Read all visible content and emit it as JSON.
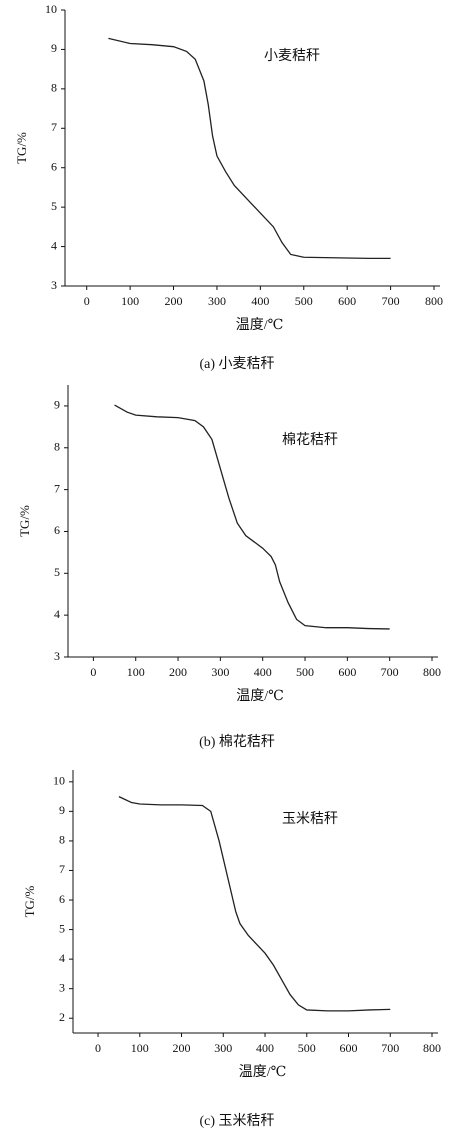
{
  "chart_data": [
    {
      "type": "line",
      "caption": "(a) 小麦秸秆",
      "annotation": "小麦秸秆",
      "xlabel": "温度/℃",
      "ylabel": "TG/%",
      "color": "#222222",
      "x": [
        50,
        100,
        150,
        200,
        230,
        250,
        270,
        280,
        290,
        300,
        320,
        340,
        370,
        400,
        430,
        450,
        470,
        500,
        550,
        600,
        650,
        700
      ],
      "values": [
        9.28,
        9.15,
        9.12,
        9.07,
        8.95,
        8.75,
        8.2,
        7.6,
        6.8,
        6.3,
        5.9,
        5.55,
        5.2,
        4.85,
        4.5,
        4.1,
        3.8,
        3.73,
        3.72,
        3.71,
        3.7,
        3.7
      ],
      "xlim": [
        -50,
        800
      ],
      "ylim": [
        3,
        10
      ],
      "xticks": [
        0,
        100,
        200,
        300,
        400,
        500,
        600,
        700,
        800
      ],
      "yticks": [
        3,
        4,
        5,
        6,
        7,
        8,
        9,
        10
      ]
    },
    {
      "type": "line",
      "caption": "(b) 棉花秸秆",
      "annotation": "棉花秸秆",
      "xlabel": "温度/℃",
      "ylabel": "TG/%",
      "color": "#222222",
      "x": [
        50,
        80,
        100,
        150,
        200,
        240,
        260,
        280,
        300,
        320,
        340,
        360,
        380,
        400,
        420,
        430,
        440,
        460,
        480,
        500,
        550,
        600,
        650,
        700
      ],
      "values": [
        9.02,
        8.85,
        8.78,
        8.74,
        8.72,
        8.65,
        8.5,
        8.2,
        7.5,
        6.8,
        6.2,
        5.9,
        5.75,
        5.6,
        5.4,
        5.2,
        4.8,
        4.3,
        3.9,
        3.75,
        3.7,
        3.7,
        3.68,
        3.67
      ],
      "xlim": [
        -60,
        800
      ],
      "ylim": [
        3,
        9.5
      ],
      "xticks": [
        0,
        100,
        200,
        300,
        400,
        500,
        600,
        700,
        800
      ],
      "yticks": [
        3,
        4,
        5,
        6,
        7,
        8,
        9
      ]
    },
    {
      "type": "line",
      "caption": "(c) 玉米秸秆",
      "annotation": "玉米秸秆",
      "xlabel": "温度/℃",
      "ylabel": "TG/%",
      "color": "#222222",
      "x": [
        50,
        80,
        100,
        150,
        200,
        250,
        270,
        290,
        310,
        330,
        340,
        360,
        380,
        400,
        420,
        440,
        460,
        480,
        500,
        550,
        600,
        650,
        700
      ],
      "values": [
        9.5,
        9.3,
        9.25,
        9.22,
        9.22,
        9.2,
        9.0,
        8.0,
        6.8,
        5.6,
        5.2,
        4.8,
        4.5,
        4.2,
        3.8,
        3.3,
        2.8,
        2.45,
        2.28,
        2.25,
        2.25,
        2.28,
        2.3
      ],
      "xlim": [
        -60,
        800
      ],
      "ylim": [
        1.5,
        10.4
      ],
      "xticks": [
        0,
        100,
        200,
        300,
        400,
        500,
        600,
        700,
        800
      ],
      "yticks": [
        2,
        3,
        4,
        5,
        6,
        7,
        8,
        9,
        10
      ]
    }
  ]
}
